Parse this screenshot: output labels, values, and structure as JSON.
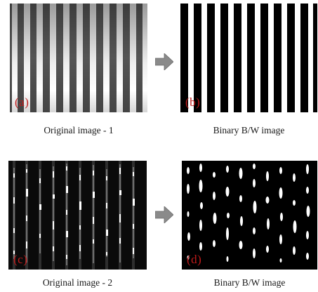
{
  "panels": {
    "a": {
      "tag": "(a)",
      "caption": "Original image - 1"
    },
    "b": {
      "tag": "(b)",
      "caption": "Binary B/W image"
    },
    "c": {
      "tag": "(c)",
      "caption": "Original image - 2"
    },
    "d": {
      "tag": "(d)",
      "caption": "Binary B/W image"
    }
  },
  "colors": {
    "tag_red": "#c01b1b",
    "arrow_gray": "#8a8a8a",
    "stripe_dark": "#1c1c1c"
  },
  "icons": {
    "arrow_top": "right-arrow-icon",
    "arrow_bottom": "right-arrow-icon"
  }
}
